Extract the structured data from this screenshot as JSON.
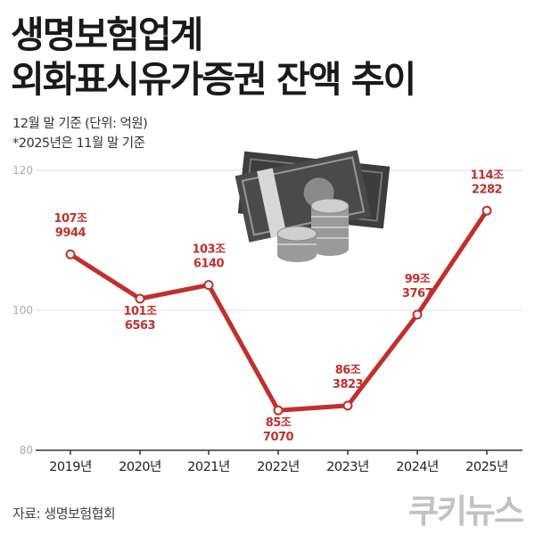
{
  "header": {
    "title_line1": "생명보험업계",
    "title_line2": "외화표시유가증권 잔액 추이",
    "subtitle_line1": "12월 말 기준 (단위: 억원)",
    "subtitle_line2": "*2025년은 11월 말 기준"
  },
  "footer": {
    "source": "자료: 생명보험협회",
    "logo": "쿠키뉴스"
  },
  "colors": {
    "line": "#c0302e",
    "label": "#c0302e",
    "grid": "#dddddd",
    "tick": "#aaaaaa"
  },
  "icons": [
    "money-stack-icon"
  ],
  "chart_data": {
    "type": "line",
    "categories": [
      "2019년",
      "2020년",
      "2021년",
      "2022년",
      "2023년",
      "2024년",
      "2025년"
    ],
    "values": [
      107.9944,
      101.6563,
      103.614,
      85.707,
      86.3823,
      99.3767,
      114.2282
    ],
    "point_labels": [
      [
        "107조",
        "9944"
      ],
      [
        "101조",
        "6563"
      ],
      [
        "103조",
        "6140"
      ],
      [
        "85조",
        "7070"
      ],
      [
        "86조",
        "3823"
      ],
      [
        "99조",
        "3767"
      ],
      [
        "114조",
        "2282"
      ]
    ],
    "yticks": [
      80,
      100,
      120
    ],
    "ylim": [
      80,
      120
    ],
    "grid": true
  }
}
